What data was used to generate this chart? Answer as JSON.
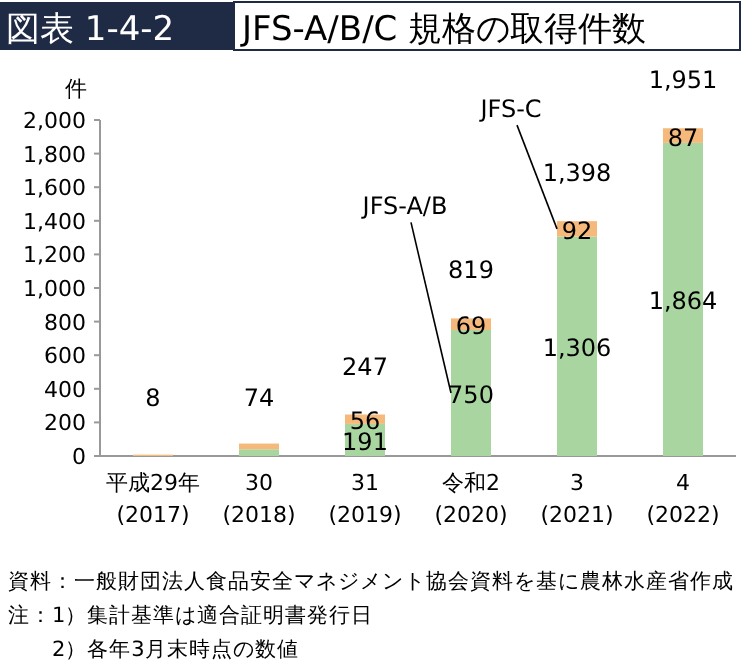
{
  "chart_data": {
    "type": "bar",
    "stacked": true,
    "title": "図表 1-4-2",
    "subtitle": "JFS-A/B/C 規格の取得件数",
    "ylabel": "件",
    "categories": [
      "平成29年\n(2017)",
      "30\n(2018)",
      "31\n(2019)",
      "令和2\n(2020)",
      "3\n(2021)",
      "4\n(2022)"
    ],
    "series": [
      {
        "name": "JFS-A/B",
        "color": "#a9d5a0",
        "values": [
          0,
          40,
          191,
          750,
          1306,
          1864
        ],
        "value_labels": [
          null,
          null,
          "191",
          "750",
          "1,306",
          "1,864"
        ]
      },
      {
        "name": "JFS-C",
        "color": "#f6b97c",
        "values": [
          8,
          34,
          56,
          69,
          92,
          87
        ],
        "value_labels": [
          null,
          null,
          "56",
          "69",
          "92",
          "87"
        ]
      }
    ],
    "totals": [
      "8",
      "74",
      "247",
      "819",
      "1,398",
      "1,951"
    ],
    "ylim": [
      0,
      2000
    ],
    "yticks": [
      0,
      {
        "value": 200,
        "label": "200"
      },
      {
        "value": 400,
        "label": "400"
      },
      {
        "value": 600,
        "label": "600"
      },
      {
        "value": 800,
        "label": "800"
      },
      {
        "value": 1000,
        "label": "1,000"
      },
      {
        "value": 1200,
        "label": "1,200"
      },
      {
        "value": 1400,
        "label": "1,400"
      },
      {
        "value": 1600,
        "label": "1,600"
      },
      {
        "value": 1800,
        "label": "1,800"
      },
      {
        "value": 2000,
        "label": "2,000"
      }
    ],
    "grid": false,
    "legend": false,
    "annotations": [
      "資料：一般財団法人食品安全マネジメント協会資料を基に農林水産省作成",
      "注：1）集計基準は適合証明書発行日",
      "　　2）各年3月末時点の数値"
    ]
  }
}
